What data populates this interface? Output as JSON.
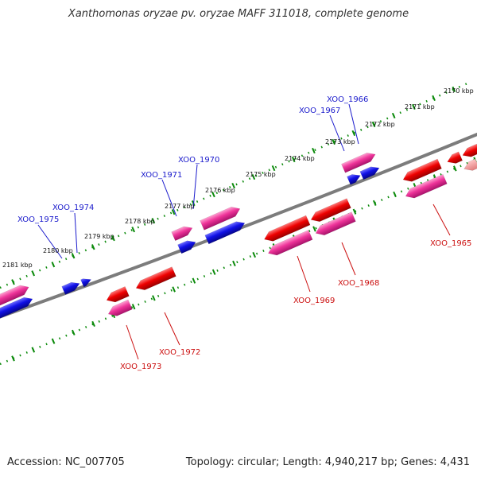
{
  "title": "Xanthomonas oryzae pv. oryzae MAFF 311018, complete genome",
  "accession": "Accession: NC_007705",
  "summary": "Topology: circular; Length: 4,940,217 bp; Genes: 4,431",
  "colors": {
    "backbone": "#808080",
    "tick": "#0b8a0b",
    "forward_label": "#1a1acc",
    "reverse_label": "#cc1111",
    "blue_gene": "#1010e0",
    "red_gene": "#ee0000",
    "pink_gene": "#ee3399"
  },
  "scale_labels": [
    "2170 kbp",
    "2171 kbp",
    "2172 kbp",
    "2173 kbp",
    "2174 kbp",
    "2175 kbp",
    "2176 kbp",
    "2177 kbp",
    "2178 kbp",
    "2179 kbp",
    "2180 kbp",
    "2181 kbp"
  ],
  "forward_genes": [
    "XOO_1966",
    "XOO_1967",
    "XOO_1970",
    "XOO_1971",
    "XOO_1974",
    "XOO_1975"
  ],
  "reverse_genes": [
    "XOO_1965",
    "XOO_1968",
    "XOO_1969",
    "XOO_1972",
    "XOO_1973"
  ]
}
